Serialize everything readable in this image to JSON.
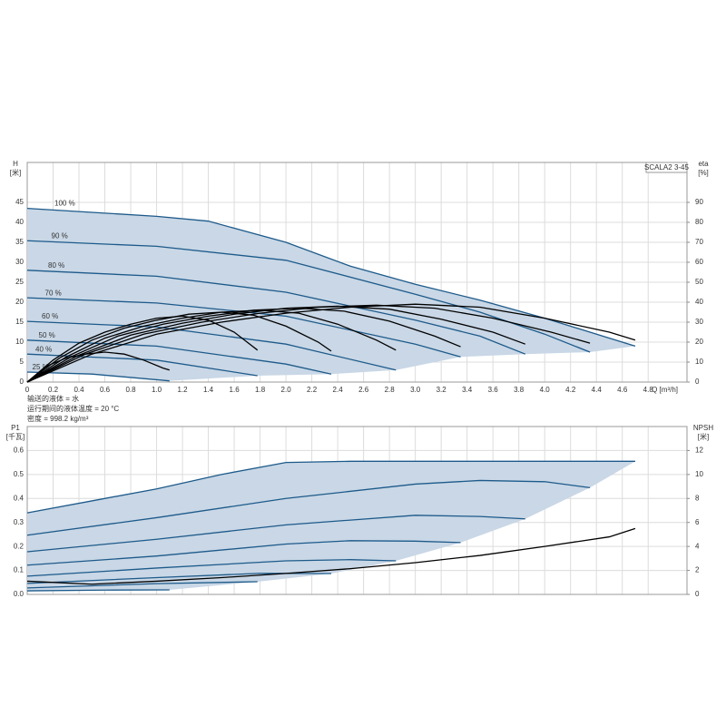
{
  "chart_data": [
    {
      "type": "line",
      "ylabel": "H",
      "yunit": "[米]",
      "y2label": "eta",
      "y2unit": "[%]",
      "xlabel": "Q [m³/h]",
      "annotation": "SCALA2 3-45",
      "notes": [
        "输送的液体 = 水",
        "运行期间的液体温度 = 20 °C",
        "密度 = 998.2 kg/m³"
      ],
      "xlim": [
        0,
        5.1
      ],
      "ylim": [
        0,
        55
      ],
      "y2lim": [
        0,
        110
      ],
      "xticks": [
        0,
        0.2,
        0.4,
        0.6,
        0.8,
        {
          "value": 1,
          "label": "1.0"
        },
        1.2,
        1.4,
        1.6,
        1.8,
        {
          "value": 2,
          "label": "2.0"
        },
        2.2,
        2.4,
        2.6,
        2.8,
        {
          "value": 3,
          "label": "3.0"
        },
        3.2,
        3.4,
        3.6,
        3.8,
        {
          "value": 4,
          "label": "4.0"
        },
        4.2,
        4.4,
        4.6,
        4.8
      ],
      "yticks": [
        0,
        5,
        10,
        15,
        20,
        25,
        30,
        35,
        40,
        45
      ],
      "y2ticks": [
        0,
        10,
        20,
        30,
        40,
        50,
        60,
        70,
        80,
        90
      ],
      "grid": true,
      "fill_color": "#c9d7e6",
      "series": [
        {
          "name": "100 %",
          "color": "#1d5a8a",
          "x": [
            0,
            0.5,
            1,
            1.4,
            2,
            2.5,
            3,
            3.5,
            4,
            4.5,
            4.7
          ],
          "values": [
            43.5,
            42.5,
            41.5,
            40.3,
            35,
            29,
            24.5,
            20.5,
            16,
            11,
            9
          ]
        },
        {
          "name": "90 %",
          "color": "#1d5a8a",
          "x": [
            0,
            1,
            2,
            3,
            3.5,
            4,
            4.35
          ],
          "values": [
            35.4,
            34,
            30.5,
            22,
            17.5,
            12,
            7.5
          ]
        },
        {
          "name": "80 %",
          "color": "#1d5a8a",
          "x": [
            0,
            1,
            2,
            3,
            3.5,
            3.85
          ],
          "values": [
            28,
            26.5,
            22.5,
            15.5,
            11.5,
            7
          ]
        },
        {
          "name": "70 %",
          "color": "#1d5a8a",
          "x": [
            0,
            1,
            2,
            3,
            3.35
          ],
          "values": [
            21.1,
            19.8,
            16.5,
            9.5,
            6.3
          ]
        },
        {
          "name": "60 %",
          "color": "#1d5a8a",
          "x": [
            0,
            1,
            2,
            2.85
          ],
          "values": [
            15.2,
            13.8,
            9.5,
            3
          ]
        },
        {
          "name": "50 %",
          "color": "#1d5a8a",
          "x": [
            0,
            1,
            2,
            2.35
          ],
          "values": [
            10.5,
            9,
            4.5,
            2
          ]
        },
        {
          "name": "40 %",
          "color": "#1d5a8a",
          "x": [
            0,
            1,
            1.78
          ],
          "values": [
            7,
            5.5,
            1.6
          ]
        },
        {
          "name": "25 %",
          "color": "#1d5a8a",
          "x": [
            0,
            0.5,
            1.1
          ],
          "values": [
            2.5,
            2,
            0.3
          ]
        },
        {
          "axis": "y2",
          "color": "#000000",
          "x": [
            0,
            0.5,
            1,
            1.5,
            2,
            2.5,
            3,
            3.5,
            4,
            4.5,
            4.7
          ],
          "values": [
            0,
            14,
            24,
            30,
            34.5,
            37.5,
            39,
            37.5,
            32,
            25,
            21
          ]
        },
        {
          "axis": "y2",
          "color": "#000000",
          "x": [
            0,
            0.45,
            0.9,
            1.35,
            1.8,
            2.25,
            2.7,
            3.15,
            3.6,
            4.05,
            4.35
          ],
          "values": [
            0,
            14,
            24,
            30,
            34.5,
            37.5,
            38.5,
            37,
            32,
            25,
            19.5
          ]
        },
        {
          "axis": "y2",
          "color": "#000000",
          "x": [
            0,
            0.4,
            0.8,
            1.2,
            1.6,
            2,
            2.4,
            2.8,
            3.2,
            3.6,
            3.85
          ],
          "values": [
            0,
            13.5,
            23.5,
            29.5,
            34,
            37,
            38,
            36.5,
            31.5,
            25,
            19
          ]
        },
        {
          "axis": "y2",
          "color": "#000000",
          "x": [
            0,
            0.35,
            0.7,
            1.05,
            1.4,
            1.75,
            2.1,
            2.45,
            2.8,
            3.15,
            3.35
          ],
          "values": [
            0,
            13,
            23,
            29,
            33,
            36,
            37,
            35.5,
            30.5,
            23,
            17.7
          ]
        },
        {
          "axis": "y2",
          "color": "#000000",
          "x": [
            0,
            0.3,
            0.6,
            0.9,
            1.2,
            1.5,
            1.8,
            2.1,
            2.4,
            2.7,
            2.85
          ],
          "values": [
            0,
            12.5,
            22,
            28,
            32,
            35,
            36,
            34.5,
            29,
            21,
            16
          ]
        },
        {
          "axis": "y2",
          "color": "#000000",
          "x": [
            0,
            0.25,
            0.5,
            0.75,
            1,
            1.25,
            1.5,
            1.75,
            2,
            2.25,
            2.35
          ],
          "values": [
            0,
            12,
            21,
            27,
            31,
            34,
            35,
            33.5,
            28,
            20,
            15.5
          ]
        },
        {
          "axis": "y2",
          "color": "#000000",
          "x": [
            0,
            0.2,
            0.4,
            0.6,
            0.8,
            1,
            1.2,
            1.4,
            1.6,
            1.78
          ],
          "values": [
            0,
            11,
            19.5,
            25,
            29,
            32,
            33,
            31,
            25,
            16
          ]
        },
        {
          "axis": "y2",
          "color": "#000000",
          "x": [
            0,
            0.15,
            0.3,
            0.45,
            0.6,
            0.75,
            0.9,
            1.05,
            1.1
          ],
          "values": [
            0,
            8,
            12,
            14,
            15,
            14,
            11,
            7,
            6
          ]
        }
      ]
    },
    {
      "type": "line",
      "ylabel": "P1",
      "yunit": "[千瓦]",
      "y2label": "NPSH",
      "y2unit": "[米]",
      "xlim": [
        0,
        5.1
      ],
      "ylim": [
        0,
        0.7
      ],
      "y2lim": [
        0,
        14
      ],
      "yticks": [
        {
          "value": 0,
          "label": "0.0"
        },
        0.1,
        0.2,
        0.3,
        0.4,
        0.5,
        0.6
      ],
      "y2ticks": [
        0,
        2,
        4,
        6,
        8,
        10,
        12
      ],
      "grid": true,
      "fill_color": "#c9d7e6",
      "series": [
        {
          "color": "#1d5a8a",
          "x": [
            0,
            0.5,
            1,
            1.5,
            2,
            2.5,
            3,
            4,
            4.7
          ],
          "values": [
            0.34,
            0.39,
            0.44,
            0.5,
            0.55,
            0.555,
            0.555,
            0.555,
            0.555
          ]
        },
        {
          "color": "#1d5a8a",
          "x": [
            0,
            1,
            2,
            3,
            3.5,
            4,
            4.35
          ],
          "values": [
            0.247,
            0.32,
            0.4,
            0.46,
            0.475,
            0.47,
            0.445
          ]
        },
        {
          "color": "#1d5a8a",
          "x": [
            0,
            1,
            2,
            3,
            3.5,
            3.85
          ],
          "values": [
            0.178,
            0.23,
            0.29,
            0.33,
            0.325,
            0.315
          ]
        },
        {
          "color": "#1d5a8a",
          "x": [
            0,
            1,
            2,
            2.5,
            3,
            3.35
          ],
          "values": [
            0.122,
            0.16,
            0.21,
            0.224,
            0.222,
            0.216
          ]
        },
        {
          "color": "#1d5a8a",
          "x": [
            0,
            1,
            2,
            2.5,
            2.85
          ],
          "values": [
            0.076,
            0.11,
            0.14,
            0.145,
            0.14
          ]
        },
        {
          "color": "#1d5a8a",
          "x": [
            0,
            1,
            1.8,
            2.35
          ],
          "values": [
            0.046,
            0.07,
            0.088,
            0.087
          ]
        },
        {
          "color": "#1d5a8a",
          "x": [
            0,
            1,
            1.78
          ],
          "values": [
            0.027,
            0.045,
            0.053
          ]
        },
        {
          "color": "#1d5a8a",
          "x": [
            0,
            0.6,
            1.1
          ],
          "values": [
            0.015,
            0.018,
            0.019
          ]
        },
        {
          "axis": "y2",
          "color": "#000000",
          "x": [
            0,
            0.5,
            1,
            1.5,
            2,
            2.5,
            3,
            3.5,
            4,
            4.5,
            4.7
          ],
          "values": [
            1.1,
            0.85,
            1.1,
            1.4,
            1.75,
            2.15,
            2.65,
            3.25,
            4,
            4.8,
            5.5
          ]
        }
      ]
    }
  ]
}
